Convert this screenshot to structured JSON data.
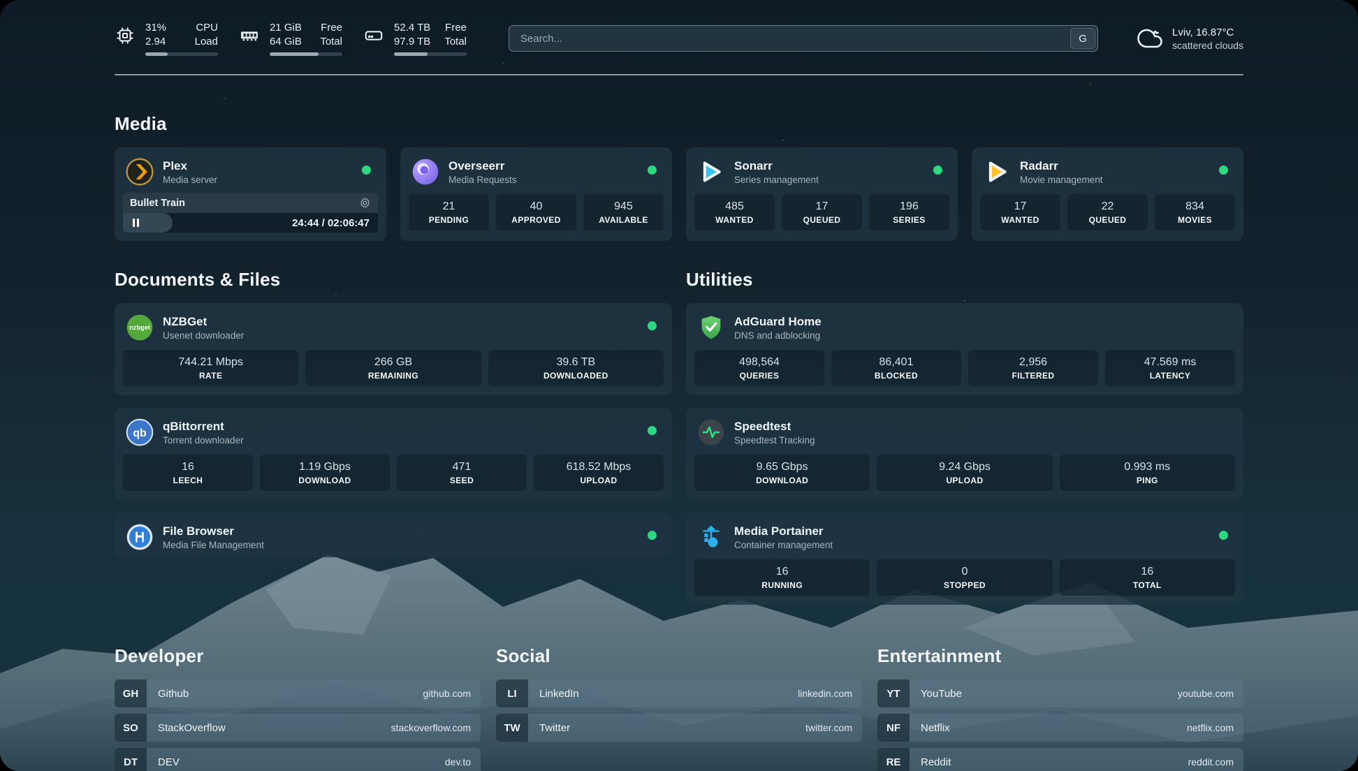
{
  "header": {
    "stats": [
      {
        "icon": "cpu-icon",
        "rows": [
          {
            "value": "31%",
            "label": "CPU"
          },
          {
            "value": "2.94",
            "label": "Load"
          }
        ],
        "progress": 31
      },
      {
        "icon": "memory-icon",
        "rows": [
          {
            "value": "21 GiB",
            "label": "Free"
          },
          {
            "value": "64 GiB",
            "label": "Total"
          }
        ],
        "progress": 67
      },
      {
        "icon": "storage-icon",
        "rows": [
          {
            "value": "52.4 TB",
            "label": "Free"
          },
          {
            "value": "97.9 TB",
            "label": "Total"
          }
        ],
        "progress": 46
      }
    ],
    "search": {
      "placeholder": "Search...",
      "button_label": "G"
    },
    "weather": {
      "location_temp": "Lviv, 16.87°C",
      "condition": "scattered clouds"
    }
  },
  "sections": {
    "media": {
      "title": "Media"
    },
    "documents": {
      "title": "Documents & Files"
    },
    "utilities": {
      "title": "Utilities"
    }
  },
  "apps": {
    "plex": {
      "name": "Plex",
      "desc": "Media server",
      "online": true,
      "now_playing": {
        "title": "Bullet Train",
        "time": "24:44 / 02:06:47",
        "progress": 19.5
      }
    },
    "overseerr": {
      "name": "Overseerr",
      "desc": "Media Requests",
      "online": true,
      "stats": [
        {
          "value": "21",
          "label": "PENDING"
        },
        {
          "value": "40",
          "label": "APPROVED"
        },
        {
          "value": "945",
          "label": "AVAILABLE"
        }
      ]
    },
    "sonarr": {
      "name": "Sonarr",
      "desc": "Series management",
      "online": true,
      "stats": [
        {
          "value": "485",
          "label": "WANTED"
        },
        {
          "value": "17",
          "label": "QUEUED"
        },
        {
          "value": "196",
          "label": "SERIES"
        }
      ]
    },
    "radarr": {
      "name": "Radarr",
      "desc": "Movie management",
      "online": true,
      "stats": [
        {
          "value": "17",
          "label": "WANTED"
        },
        {
          "value": "22",
          "label": "QUEUED"
        },
        {
          "value": "834",
          "label": "MOVIES"
        }
      ]
    },
    "nzbget": {
      "name": "NZBGet",
      "desc": "Usenet downloader",
      "online": true,
      "stats": [
        {
          "value": "744.21 Mbps",
          "label": "RATE"
        },
        {
          "value": "266 GB",
          "label": "REMAINING"
        },
        {
          "value": "39.6 TB",
          "label": "DOWNLOADED"
        }
      ]
    },
    "qbittorrent": {
      "name": "qBittorrent",
      "desc": "Torrent downloader",
      "online": true,
      "stats": [
        {
          "value": "16",
          "label": "LEECH"
        },
        {
          "value": "1.19 Gbps",
          "label": "DOWNLOAD"
        },
        {
          "value": "471",
          "label": "SEED"
        },
        {
          "value": "618.52 Mbps",
          "label": "UPLOAD"
        }
      ]
    },
    "filebrowser": {
      "name": "File Browser",
      "desc": "Media File Management",
      "online": true
    },
    "adguard": {
      "name": "AdGuard Home",
      "desc": "DNS and adblocking",
      "online": false,
      "stats": [
        {
          "value": "498,564",
          "label": "QUERIES"
        },
        {
          "value": "86,401",
          "label": "BLOCKED"
        },
        {
          "value": "2,956",
          "label": "FILTERED"
        },
        {
          "value": "47.569 ms",
          "label": "LATENCY"
        }
      ]
    },
    "speedtest": {
      "name": "Speedtest",
      "desc": "Speedtest Tracking",
      "online": false,
      "stats": [
        {
          "value": "9.65 Gbps",
          "label": "DOWNLOAD"
        },
        {
          "value": "9.24 Gbps",
          "label": "UPLOAD"
        },
        {
          "value": "0.993 ms",
          "label": "PING"
        }
      ]
    },
    "portainer": {
      "name": "Media Portainer",
      "desc": "Container management",
      "online": true,
      "stats": [
        {
          "value": "16",
          "label": "RUNNING"
        },
        {
          "value": "0",
          "label": "STOPPED"
        },
        {
          "value": "16",
          "label": "TOTAL"
        }
      ]
    }
  },
  "bookmarks": [
    {
      "title": "Developer",
      "links": [
        {
          "abbr": "GH",
          "name": "Github",
          "url": "github.com"
        },
        {
          "abbr": "SO",
          "name": "StackOverflow",
          "url": "stackoverflow.com"
        },
        {
          "abbr": "DT",
          "name": "DEV",
          "url": "dev.to"
        }
      ]
    },
    {
      "title": "Social",
      "links": [
        {
          "abbr": "LI",
          "name": "LinkedIn",
          "url": "linkedin.com"
        },
        {
          "abbr": "TW",
          "name": "Twitter",
          "url": "twitter.com"
        }
      ]
    },
    {
      "title": "Entertainment",
      "links": [
        {
          "abbr": "YT",
          "name": "YouTube",
          "url": "youtube.com"
        },
        {
          "abbr": "NF",
          "name": "Netflix",
          "url": "netflix.com"
        },
        {
          "abbr": "RE",
          "name": "Reddit",
          "url": "reddit.com"
        }
      ]
    }
  ],
  "colors": {
    "status_online": "#2dd880",
    "plex_gold": "#e5a00d",
    "sonarr_blue": "#35c5f4",
    "radarr_orange": "#ffc230",
    "nzbget_green": "#54a83c",
    "qbittorrent_blue": "#3d76c9",
    "adguard_green": "#46b356",
    "portainer_blue": "#2fb0e8",
    "speedtest_pulse": "#2fe08a"
  }
}
